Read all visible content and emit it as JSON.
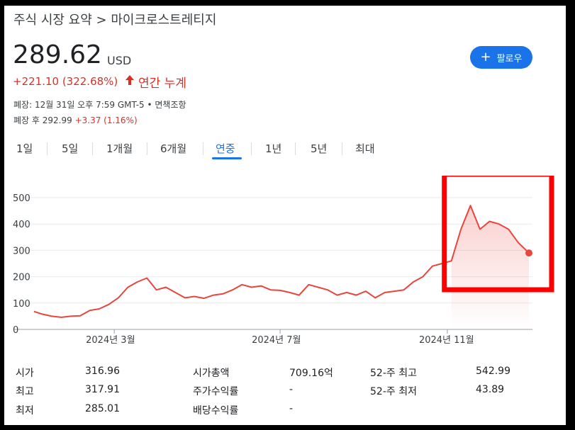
{
  "breadcrumb": {
    "parent": "주식 시장 요약",
    "separator": ">",
    "current": "마이크로스트레티지"
  },
  "quote": {
    "price": "289.62",
    "currency": "USD",
    "change": "+221.10 (322.68%)",
    "change_icon": "arrow-up-icon",
    "period": "연간 누계",
    "close_info": "폐장: 12월 31일 오후 7:59 GMT-5 • 면책조항",
    "after_hours_label": "폐장 후 292.99",
    "after_hours_change": "+3.37 (1.16%)"
  },
  "follow_button": {
    "icon": "plus-icon",
    "label": "팔로우"
  },
  "tabs": [
    {
      "label": "1일"
    },
    {
      "label": "5일"
    },
    {
      "label": "1개월"
    },
    {
      "label": "6개월"
    },
    {
      "label": "연중"
    },
    {
      "label": "1년"
    },
    {
      "label": "5년"
    },
    {
      "label": "최대"
    }
  ],
  "active_tab": "연중",
  "colors": {
    "accent": "#1a73e8",
    "negative_or_up_red": "#d93025",
    "line": "#e8453c",
    "highlight_box": "#ff0000"
  },
  "chart_data": {
    "type": "area",
    "y_ticks": [
      "500",
      "400",
      "300",
      "200",
      "100",
      "0"
    ],
    "x_labels": [
      "2024년 3월",
      "2024년 7월",
      "2024년 11월"
    ],
    "ylim": [
      0,
      500
    ],
    "grid": true,
    "x": [
      "2024-01-02",
      "2024-01-08",
      "2024-01-15",
      "2024-01-22",
      "2024-01-29",
      "2024-02-05",
      "2024-02-12",
      "2024-02-19",
      "2024-02-26",
      "2024-03-04",
      "2024-03-11",
      "2024-03-18",
      "2024-03-25",
      "2024-04-01",
      "2024-04-08",
      "2024-04-15",
      "2024-04-22",
      "2024-04-29",
      "2024-05-06",
      "2024-05-13",
      "2024-05-20",
      "2024-05-27",
      "2024-06-03",
      "2024-06-10",
      "2024-06-17",
      "2024-06-24",
      "2024-07-01",
      "2024-07-08",
      "2024-07-15",
      "2024-07-22",
      "2024-07-29",
      "2024-08-05",
      "2024-08-12",
      "2024-08-19",
      "2024-08-26",
      "2024-09-02",
      "2024-09-09",
      "2024-09-16",
      "2024-09-23",
      "2024-09-30",
      "2024-10-07",
      "2024-10-14",
      "2024-10-21",
      "2024-10-28",
      "2024-11-04",
      "2024-11-11",
      "2024-11-18",
      "2024-11-25",
      "2024-12-02",
      "2024-12-09",
      "2024-12-16",
      "2024-12-23",
      "2024-12-31"
    ],
    "values": [
      68,
      58,
      50,
      46,
      50,
      52,
      72,
      78,
      95,
      120,
      160,
      180,
      195,
      150,
      160,
      140,
      120,
      125,
      118,
      130,
      135,
      150,
      170,
      160,
      165,
      150,
      148,
      140,
      130,
      170,
      160,
      150,
      130,
      140,
      130,
      145,
      120,
      140,
      145,
      150,
      180,
      200,
      240,
      250,
      260,
      380,
      470,
      380,
      410,
      400,
      380,
      330,
      290
    ],
    "highlight": {
      "label": "",
      "start": "2024-11-04",
      "end": "2024-12-31"
    }
  },
  "stats": {
    "col1": [
      {
        "label": "시가",
        "value": "316.96"
      },
      {
        "label": "최고",
        "value": "317.91"
      },
      {
        "label": "최저",
        "value": "285.01"
      }
    ],
    "col2": [
      {
        "label": "시가총액",
        "value": "709.16억"
      },
      {
        "label": "주가수익률",
        "value": "-"
      },
      {
        "label": "배당수익률",
        "value": "-"
      }
    ],
    "col3": [
      {
        "label": "52-주 최고",
        "value": "542.99"
      },
      {
        "label": "52-주 최저",
        "value": "43.89"
      }
    ]
  }
}
